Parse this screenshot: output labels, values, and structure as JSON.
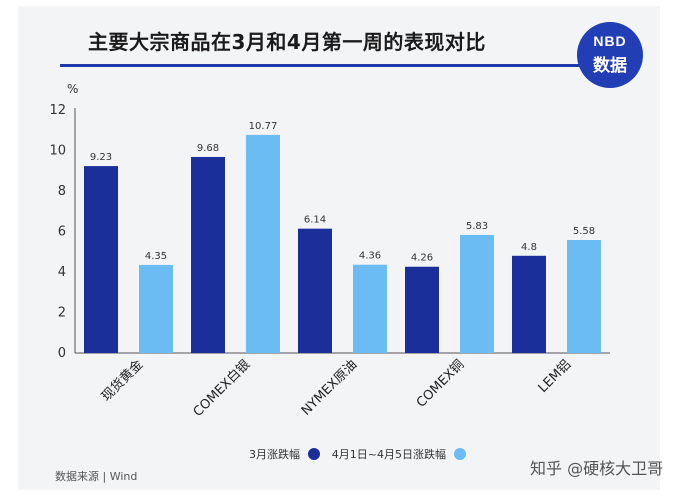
{
  "title": "主要大宗商品在3月和4月第一周的表现对比",
  "logo": {
    "line1": "NBD",
    "line2": "数据"
  },
  "source": "数据来源 | Wind",
  "credit": "知乎 @硬核大卫哥",
  "colors": {
    "series1": "#1b2f9a",
    "series2": "#6bbcf2",
    "accent": "#1e39a8"
  },
  "chart_data": {
    "type": "bar",
    "ylabel": "%",
    "ylim": [
      0,
      12
    ],
    "yticks": [
      0,
      2,
      4,
      6,
      8,
      10,
      12
    ],
    "grid": false,
    "legend": "bottom",
    "categories": [
      "现货黄金",
      "COMEX白银",
      "NYMEX原油",
      "COMEX铜",
      "LEM铝"
    ],
    "series": [
      {
        "name": "3月涨跌幅",
        "values": [
          9.23,
          9.68,
          6.14,
          4.26,
          4.8
        ],
        "labels": [
          "9.23",
          "9.68",
          "6.14",
          "4.26",
          "4.8"
        ]
      },
      {
        "name": "4月1日~4月5日涨跌幅",
        "values": [
          4.35,
          10.77,
          4.36,
          5.83,
          5.58
        ],
        "labels": [
          "4.35",
          "10.77",
          "4.36",
          "5.83",
          "5.58"
        ]
      }
    ]
  }
}
